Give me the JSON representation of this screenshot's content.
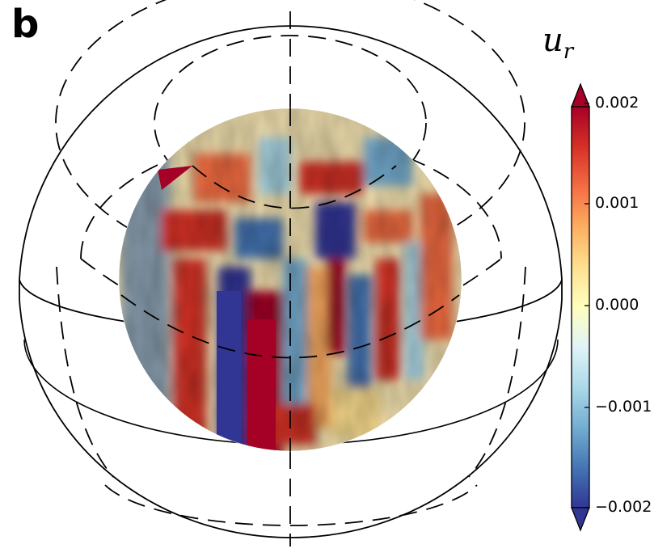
{
  "panel_label": "b",
  "colorbar": {
    "title_main": "u",
    "title_sub": "r",
    "ticks": [
      "0.002",
      "0.001",
      "0.000",
      "−0.001",
      "−0.002"
    ],
    "tick_values": [
      0.002,
      0.001,
      0.0,
      -0.001,
      -0.002
    ],
    "range": [
      -0.002,
      0.002
    ],
    "extend": "both",
    "colormap": [
      "#313695",
      "#4575b4",
      "#74add1",
      "#abd9e9",
      "#e0f3f8",
      "#ffffbf",
      "#fee090",
      "#fdae61",
      "#f46d43",
      "#d73027",
      "#a50026"
    ]
  },
  "colors": {
    "outline": "#000000",
    "background": "#ffffff"
  }
}
